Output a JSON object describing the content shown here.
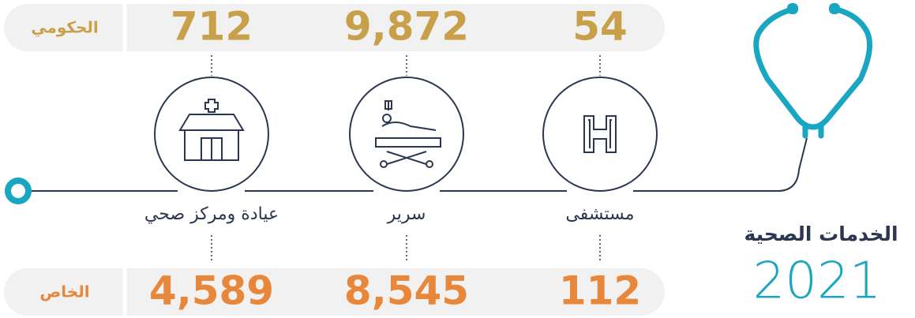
{
  "header": {
    "title": "الخدمات الصحية",
    "year": "2021"
  },
  "categories": [
    "مستشفى",
    "سرير",
    "عيادة ومركز صحي"
  ],
  "rows": [
    {
      "label": "الحكومي",
      "values": [
        "54",
        "9,872",
        "712"
      ]
    },
    {
      "label": "الخاص",
      "values": [
        "112",
        "8,545",
        "4,589"
      ]
    }
  ]
}
